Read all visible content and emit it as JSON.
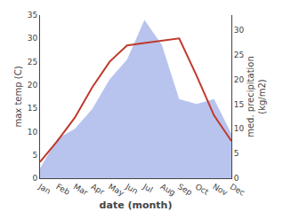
{
  "chart_data": {
    "type": "line",
    "categories": [
      "Jan",
      "Feb",
      "Mar",
      "Apr",
      "May",
      "Jun",
      "Jul",
      "Aug",
      "Sep",
      "Oct",
      "Nov",
      "Dec"
    ],
    "series": [
      {
        "type": "area",
        "axis": "y2",
        "color": "#b8c4ee",
        "values": [
          2.0,
          8.0,
          10.0,
          14.0,
          20.0,
          24.0,
          32.0,
          27.0,
          16.0,
          15.0,
          16.0,
          9.0
        ]
      },
      {
        "type": "line",
        "color": "#c0392b",
        "values": [
          3.5,
          8.0,
          13.0,
          19.5,
          25.0,
          28.5,
          29.0,
          29.5,
          30.0,
          22.0,
          13.5,
          8.0
        ]
      }
    ],
    "xlabel": "date (month)",
    "ylabel": "max temp (C)",
    "y2label": "med. precipitation\n(kg/m2)",
    "ylim": [
      0,
      35
    ],
    "yticks": [
      0,
      5,
      10,
      15,
      20,
      25,
      30,
      35
    ],
    "y2lim": [
      0,
      33
    ],
    "y2ticks": [
      0,
      5,
      10,
      15,
      20,
      25,
      30
    ],
    "grid": false
  }
}
